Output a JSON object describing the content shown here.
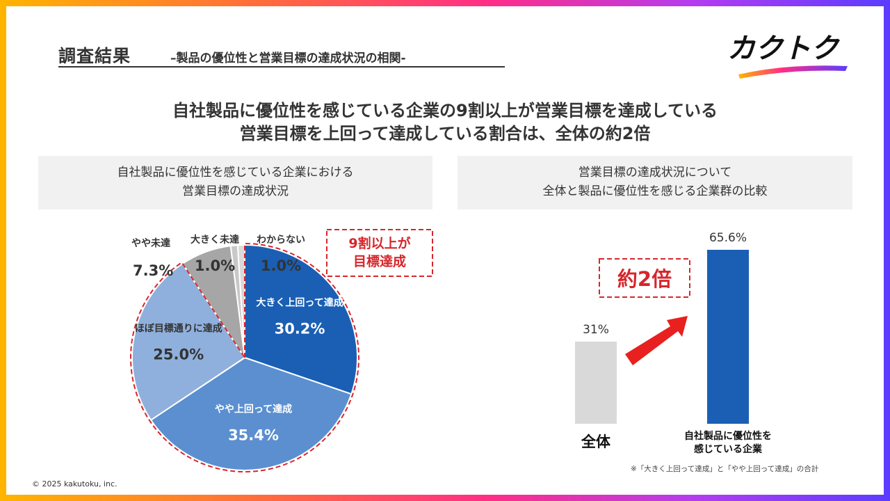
{
  "header": {
    "title": "調査結果",
    "subtitle": "–製品の優位性と営業目標の達成状況の相関-"
  },
  "logo": {
    "text": "カクトク"
  },
  "headline": {
    "line1": "自社製品に優位性を感じている企業の9割以上が営業目標を達成している",
    "line2": "営業目標を上回って達成している割合は、全体の約2倍"
  },
  "left_panel": {
    "line1": "自社製品に優位性を感じている企業における",
    "line2": "営業目標の達成状況"
  },
  "right_panel": {
    "line1": "営業目標の達成状況について",
    "line2": "全体と製品に優位性を感じる企業群の比較"
  },
  "callouts": {
    "pie_highlight_line1": "9割以上が",
    "pie_highlight_line2": "目標達成",
    "bar_highlight": "約2倍"
  },
  "chart_data": [
    {
      "type": "pie",
      "slices": [
        {
          "label": "大きく上回って達成",
          "value": 30.2,
          "display": "30.2%",
          "color": "#1a5fb4"
        },
        {
          "label": "やや上回って達成",
          "value": 35.4,
          "display": "35.4%",
          "color": "#5b8fd0"
        },
        {
          "label": "ほぼ目標通りに達成",
          "value": 25.0,
          "display": "25.0%",
          "color": "#8fb0dc"
        },
        {
          "label": "やや未達",
          "value": 7.3,
          "display": "7.3%",
          "color": "#a6a6a6"
        },
        {
          "label": "大きく未達",
          "value": 1.0,
          "display": "1.0%",
          "color": "#c8c8c8"
        },
        {
          "label": "わからない",
          "value": 1.0,
          "display": "1.0%",
          "color": "#d9d9d9"
        }
      ]
    },
    {
      "type": "bar",
      "categories": [
        "全体",
        "自社製品に優位性を感じている企業"
      ],
      "category_lines": [
        [
          "全体"
        ],
        [
          "自社製品に優位性を",
          "感じている企業"
        ]
      ],
      "values": [
        31,
        65.6
      ],
      "value_labels": [
        "31%",
        "65.6%"
      ],
      "colors": [
        "#d9d9d9",
        "#1a5fb4"
      ]
    }
  ],
  "footnote": "※「大きく上回って達成」と「やや上回って達成」の合計",
  "copyright": "© 2025 kakutoku, inc."
}
